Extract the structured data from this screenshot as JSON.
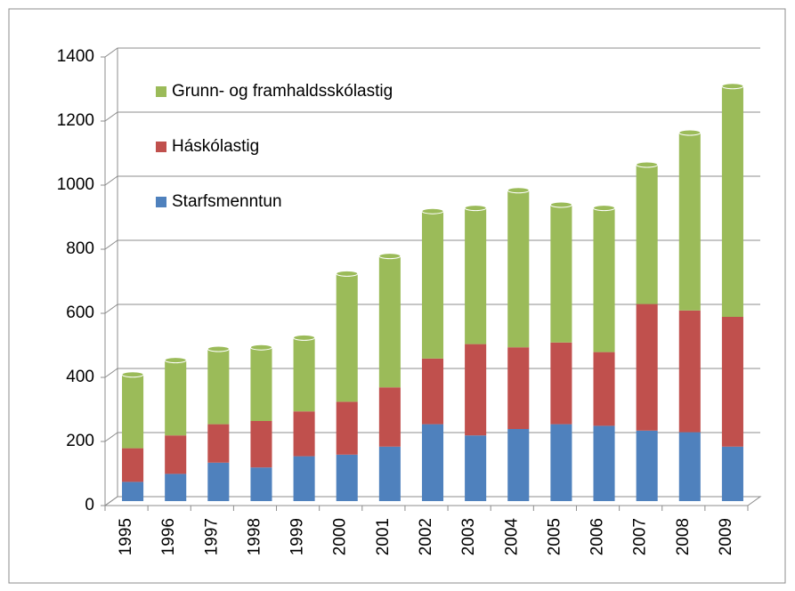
{
  "chart_data": {
    "type": "bar",
    "stacked": true,
    "categories": [
      "1995",
      "1996",
      "1997",
      "1998",
      "1999",
      "2000",
      "2001",
      "2002",
      "2003",
      "2004",
      "2005",
      "2006",
      "2007",
      "2008",
      "2009"
    ],
    "series": [
      {
        "name": "Starfsmenntun",
        "color": "#4f81bd",
        "values": [
          60,
          85,
          120,
          105,
          140,
          145,
          170,
          240,
          205,
          225,
          240,
          235,
          220,
          215,
          170
        ]
      },
      {
        "name": "Háskólastig",
        "color": "#c0504d",
        "values": [
          105,
          120,
          120,
          145,
          140,
          165,
          185,
          205,
          285,
          255,
          255,
          230,
          395,
          380,
          405
        ]
      },
      {
        "name": "Grunn- og framhaldsskólastig",
        "color": "#9bbb59",
        "values": [
          230,
          235,
          235,
          230,
          230,
          400,
          410,
          460,
          425,
          490,
          430,
          450,
          435,
          555,
          720
        ]
      }
    ],
    "ylim": [
      0,
      1400
    ],
    "yticks": [
      0,
      200,
      400,
      600,
      800,
      1000,
      1200,
      1400
    ],
    "grid": true,
    "legend": "upper left"
  }
}
